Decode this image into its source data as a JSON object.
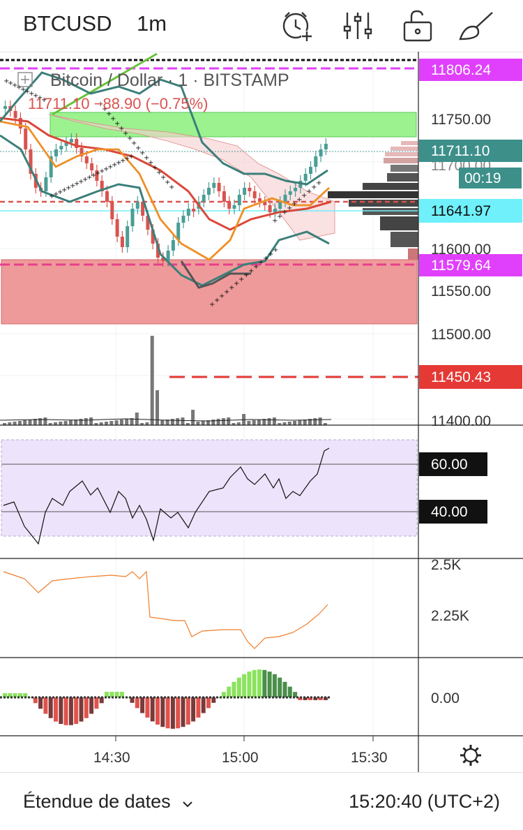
{
  "header": {
    "symbol": "BTCUSD",
    "interval": "1m",
    "icons": [
      "alarm-add-icon",
      "indicators-sliders-icon",
      "lock-icon",
      "drawing-brush-icon"
    ]
  },
  "legend": {
    "title": "Bitcoin / Dollar · 1 · BITSTAMP",
    "quote": "11711.10 −88.90 (−0.75%)"
  },
  "price_axis": {
    "ticks": [
      "11750.00",
      "11700.00",
      "11650.00",
      "11600.00",
      "11550.00",
      "11500.00",
      "11400.00"
    ],
    "labels": [
      {
        "text": "11806.24",
        "color": "#e040fb"
      },
      {
        "text": "11711.10",
        "color": "#3d8f8a"
      },
      {
        "text": "00:19",
        "color": "#3d8f8a"
      },
      {
        "text": "11641.97",
        "color": "#6ff0fb"
      },
      {
        "text": "11579.64",
        "color": "#e040fb"
      },
      {
        "text": "11450.43",
        "color": "#e53935"
      }
    ]
  },
  "rsi_panel": {
    "labels": [
      "60.00",
      "40.00"
    ]
  },
  "obv_panel": {
    "ticks": [
      "2.5K",
      "2.25K"
    ]
  },
  "macd_panel": {
    "ticks": [
      "0.00"
    ]
  },
  "time_axis": {
    "ticks": [
      "14:30",
      "15:00",
      "15:30"
    ],
    "settings_icon": "gear-icon"
  },
  "footer": {
    "date_range": "Étendue de dates",
    "time": "15:20:40 (UTC+2)"
  },
  "colors": {
    "up": "#4a9e96",
    "down": "#d9534f",
    "resistance_zone": "#9cf28f",
    "support_zone": "#ef9a9a",
    "rsi_band": "#ede3fa"
  }
}
